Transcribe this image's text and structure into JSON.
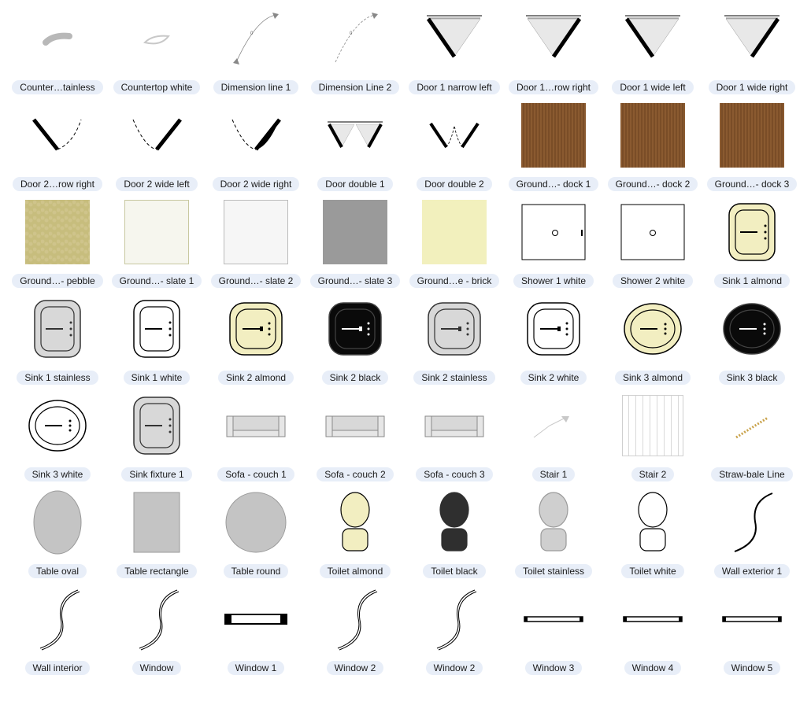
{
  "palette": {
    "label_bg": "#e8eef8",
    "label_fg": "#1a1a1a",
    "page_bg": "#ffffff"
  },
  "tile": {
    "w": 126,
    "thumb": 98
  },
  "items": [
    {
      "id": "countertop-stainless",
      "label": "Counter…tainless",
      "svg": "counter_stainless"
    },
    {
      "id": "countertop-white",
      "label": "Countertop white",
      "svg": "counter_white"
    },
    {
      "id": "dimension-line-1",
      "label": "Dimension line 1",
      "svg": "dim1"
    },
    {
      "id": "dimension-line-2",
      "label": "Dimension Line 2",
      "svg": "dim2"
    },
    {
      "id": "door-1-narrow-left",
      "label": "Door 1 narrow left",
      "svg": "door_v_leftthick"
    },
    {
      "id": "door-1-narrow-right",
      "label": "Door 1…row right",
      "svg": "door_v_rightthick"
    },
    {
      "id": "door-1-wide-left",
      "label": "Door 1 wide left",
      "svg": "door_v_leftthick"
    },
    {
      "id": "door-1-wide-right",
      "label": "Door 1 wide right",
      "svg": "door_v_rightthick"
    },
    {
      "id": "door-2-narrow-right",
      "label": "Door 2…row right",
      "svg": "door_v2_left"
    },
    {
      "id": "door-2-wide-left",
      "label": "Door 2 wide left",
      "svg": "door_v2_mid"
    },
    {
      "id": "door-2-wide-right",
      "label": "Door 2 wide right",
      "svg": "door_v2_right"
    },
    {
      "id": "door-double-1",
      "label": "Door double 1",
      "svg": "door_double1"
    },
    {
      "id": "door-double-2",
      "label": "Door double 2",
      "svg": "door_double2"
    },
    {
      "id": "ground-dock-1",
      "label": "Ground…- dock 1",
      "svg": "wood_sq"
    },
    {
      "id": "ground-dock-2",
      "label": "Ground…- dock 2",
      "svg": "wood_sq"
    },
    {
      "id": "ground-dock-3",
      "label": "Ground…- dock 3",
      "svg": "wood_sq"
    },
    {
      "id": "ground-pebble",
      "label": "Ground…- pebble",
      "svg": "pebble_sq"
    },
    {
      "id": "ground-slate-1",
      "label": "Ground…- slate 1",
      "svg": "slate1_sq"
    },
    {
      "id": "ground-slate-2",
      "label": "Ground…- slate 2",
      "svg": "slate2_sq"
    },
    {
      "id": "ground-slate-3",
      "label": "Ground…- slate 3",
      "svg": "slate3_sq"
    },
    {
      "id": "ground-brick",
      "label": "Ground…e - brick",
      "svg": "brick_sq"
    },
    {
      "id": "shower-1-white",
      "label": "Shower 1 white",
      "svg": "shower1"
    },
    {
      "id": "shower-2-white",
      "label": "Shower 2 white",
      "svg": "shower2"
    },
    {
      "id": "sink-1-almond",
      "label": "Sink 1 almond",
      "svg": "sink_rect",
      "fill": "#f2eec1",
      "stroke": "#000"
    },
    {
      "id": "sink-1-stainless",
      "label": "Sink 1 stainless",
      "svg": "sink_rect",
      "fill": "#d8d8d8",
      "stroke": "#333"
    },
    {
      "id": "sink-1-white",
      "label": "Sink 1 white",
      "svg": "sink_rect",
      "fill": "#ffffff",
      "stroke": "#000"
    },
    {
      "id": "sink-2-almond",
      "label": "Sink 2 almond",
      "svg": "sink_round",
      "fill": "#f2eec1",
      "stroke": "#000"
    },
    {
      "id": "sink-2-black",
      "label": "Sink 2 black",
      "svg": "sink_round",
      "fill": "#0a0a0a",
      "stroke": "#444",
      "fg": "#fff"
    },
    {
      "id": "sink-2-stainless",
      "label": "Sink 2 stainless",
      "svg": "sink_round",
      "fill": "#d8d8d8",
      "stroke": "#333"
    },
    {
      "id": "sink-2-white",
      "label": "Sink 2 white",
      "svg": "sink_round",
      "fill": "#ffffff",
      "stroke": "#000"
    },
    {
      "id": "sink-3-almond",
      "label": "Sink 3 almond",
      "svg": "sink_oval",
      "fill": "#f2eec1",
      "stroke": "#000"
    },
    {
      "id": "sink-3-black",
      "label": "Sink 3 black",
      "svg": "sink_oval",
      "fill": "#0a0a0a",
      "stroke": "#444",
      "fg": "#fff"
    },
    {
      "id": "sink-3-white",
      "label": "Sink 3 white",
      "svg": "sink_oval",
      "fill": "#ffffff",
      "stroke": "#000"
    },
    {
      "id": "sink-fixture-1",
      "label": "Sink fixture 1",
      "svg": "sink_rect",
      "fill": "#d8d8d8",
      "stroke": "#333"
    },
    {
      "id": "sofa-1",
      "label": "Sofa - couch 1",
      "svg": "sofa"
    },
    {
      "id": "sofa-2",
      "label": "Sofa - couch 2",
      "svg": "sofa"
    },
    {
      "id": "sofa-3",
      "label": "Sofa - couch 3",
      "svg": "sofa"
    },
    {
      "id": "stair-1",
      "label": "Stair 1",
      "svg": "stair1"
    },
    {
      "id": "stair-2",
      "label": "Stair 2",
      "svg": "stair2_sq"
    },
    {
      "id": "straw-bale",
      "label": "Straw-bale Line",
      "svg": "straw"
    },
    {
      "id": "table-oval",
      "label": "Table oval",
      "svg": "table_oval"
    },
    {
      "id": "table-rect",
      "label": "Table rectangle",
      "svg": "table_rect"
    },
    {
      "id": "table-round",
      "label": "Table round",
      "svg": "table_round"
    },
    {
      "id": "toilet-almond",
      "label": "Toilet almond",
      "svg": "toilet",
      "fill": "#f2eec1",
      "stroke": "#000"
    },
    {
      "id": "toilet-black",
      "label": "Toilet black",
      "svg": "toilet",
      "fill": "#2f2f2f",
      "stroke": "#2f2f2f"
    },
    {
      "id": "toilet-stainless",
      "label": "Toilet stainless",
      "svg": "toilet",
      "fill": "#cfcfcf",
      "stroke": "#9a9a9a"
    },
    {
      "id": "toilet-white",
      "label": "Toilet white",
      "svg": "toilet",
      "fill": "#ffffff",
      "stroke": "#000"
    },
    {
      "id": "wall-ext-1",
      "label": "Wall exterior 1",
      "svg": "wall_ext"
    },
    {
      "id": "wall-interior",
      "label": "Wall interior",
      "svg": "wall_int"
    },
    {
      "id": "window",
      "label": "Window",
      "svg": "wall_int"
    },
    {
      "id": "window-1",
      "label": "Window 1",
      "svg": "window1"
    },
    {
      "id": "window-2",
      "label": "Window 2",
      "svg": "wall_int"
    },
    {
      "id": "window-2b",
      "label": "Window 2",
      "svg": "wall_int"
    },
    {
      "id": "window-3",
      "label": "Window 3",
      "svg": "window_thin"
    },
    {
      "id": "window-4",
      "label": "Window 4",
      "svg": "window_thin"
    },
    {
      "id": "window-5",
      "label": "Window 5",
      "svg": "window_thin"
    }
  ]
}
